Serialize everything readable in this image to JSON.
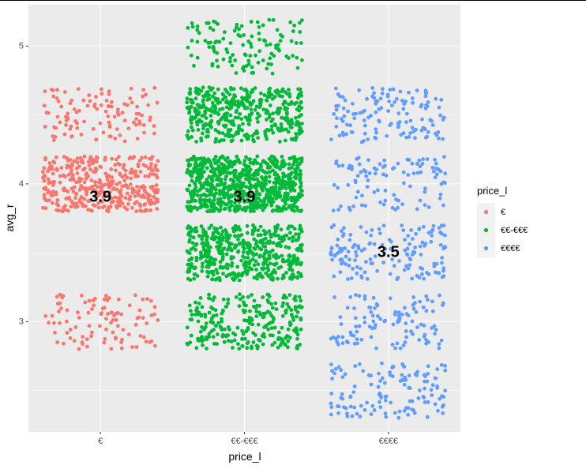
{
  "chart_data": {
    "type": "scatter",
    "jitter": true,
    "xlabel": "price_l",
    "ylabel": "avg_r",
    "categories": [
      "€",
      "€€-€€€",
      "€€€€"
    ],
    "y_ticks": [
      3,
      4,
      5
    ],
    "ylim": [
      2.2,
      5.3
    ],
    "grid": true,
    "legend": {
      "title": "price_l",
      "placement": "right",
      "entries": [
        "€",
        "€€-€€€",
        "€€€€"
      ]
    },
    "colors": [
      "#F8766D",
      "#00BA38",
      "#619CFF"
    ],
    "series": [
      {
        "name": "€",
        "rating_levels": [
          {
            "y": 3.0,
            "count": 100
          },
          {
            "y": 4.0,
            "count": 400
          },
          {
            "y": 4.5,
            "count": 110
          }
        ],
        "mean_label": "3.9",
        "mean": 3.9
      },
      {
        "name": "€€-€€€",
        "rating_levels": [
          {
            "y": 3.0,
            "count": 260
          },
          {
            "y": 3.5,
            "count": 480
          },
          {
            "y": 4.0,
            "count": 750
          },
          {
            "y": 4.5,
            "count": 430
          },
          {
            "y": 5.0,
            "count": 120
          }
        ],
        "mean_label": "3.9",
        "mean": 3.9
      },
      {
        "name": "€€€€",
        "rating_levels": [
          {
            "y": 2.5,
            "count": 130
          },
          {
            "y": 3.0,
            "count": 110
          },
          {
            "y": 3.5,
            "count": 150
          },
          {
            "y": 4.0,
            "count": 100
          },
          {
            "y": 4.5,
            "count": 130
          }
        ],
        "mean_label": "3.5",
        "mean": 3.5
      }
    ]
  }
}
